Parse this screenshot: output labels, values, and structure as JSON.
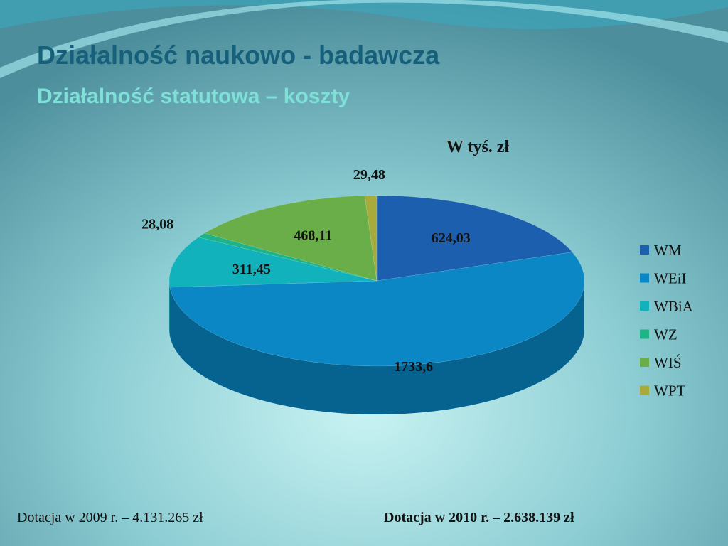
{
  "slide": {
    "title": "Działalność naukowo - badawcza",
    "subtitle": "Działalność statutowa – koszty",
    "footer_left": "Dotacja w 2009 r. – 4.131.265 zł",
    "footer_right": "Dotacja w 2010 r. – 2.638.139 zł"
  },
  "chart_data": {
    "type": "pie",
    "title": "W tyś. zł",
    "categories": [
      "WM",
      "WEiI",
      "WBiA",
      "WZ",
      "WIŚ",
      "WPT"
    ],
    "values": [
      624.03,
      1733.6,
      311.45,
      28.08,
      468.11,
      29.48
    ],
    "value_labels": [
      "624,03",
      "1733,6",
      "311,45",
      "28,08",
      "468,11",
      "29,48"
    ],
    "colors": [
      "#1b5fae",
      "#0a87c4",
      "#12b2bd",
      "#1fb487",
      "#6aae4a",
      "#a6ab3c"
    ],
    "legend": "right"
  }
}
